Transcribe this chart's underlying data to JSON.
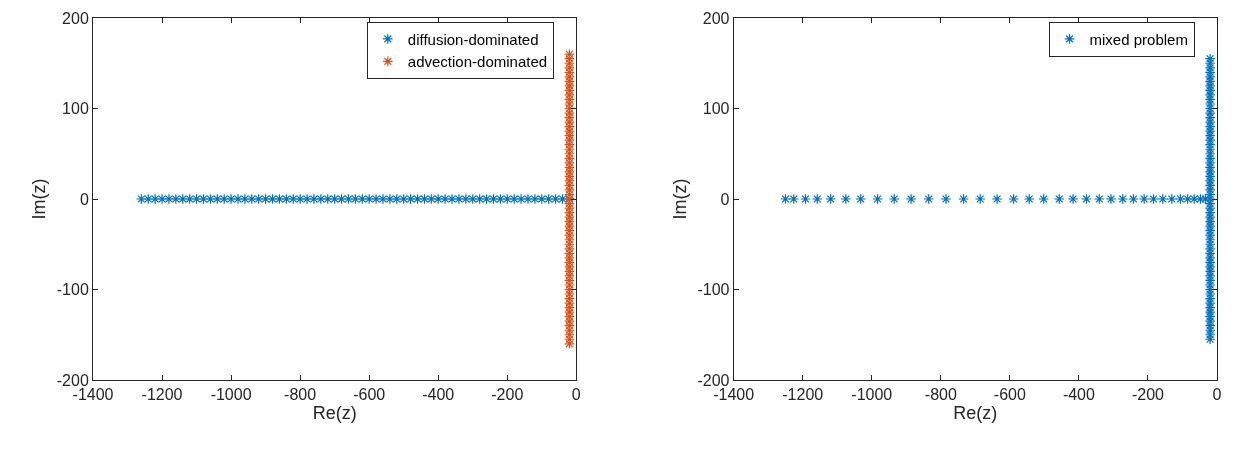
{
  "chart_data": [
    {
      "type": "scatter",
      "xlabel": "Re(z)",
      "ylabel": "Im(z)",
      "xlim": [
        -1400,
        0
      ],
      "xticks": [
        -1400,
        -1200,
        -1000,
        -800,
        -600,
        -400,
        -200,
        0
      ],
      "ylim": [
        -200,
        200
      ],
      "yticks": [
        -200,
        -100,
        0,
        100,
        200
      ],
      "legend": "top right",
      "marker": "cross",
      "series": [
        {
          "name": "diffusion-dominated",
          "color": "#0072bd",
          "x": [
            -1260,
            -1240,
            -1220,
            -1200,
            -1180,
            -1160,
            -1140,
            -1120,
            -1100,
            -1080,
            -1060,
            -1040,
            -1020,
            -1000,
            -980,
            -960,
            -940,
            -920,
            -900,
            -880,
            -860,
            -840,
            -820,
            -800,
            -780,
            -760,
            -740,
            -720,
            -700,
            -680,
            -660,
            -640,
            -620,
            -600,
            -580,
            -560,
            -540,
            -520,
            -500,
            -480,
            -460,
            -440,
            -420,
            -400,
            -380,
            -360,
            -340,
            -320,
            -300,
            -280,
            -260,
            -240,
            -220,
            -200,
            -180,
            -160,
            -140,
            -120,
            -100,
            -80,
            -60,
            -40,
            -20
          ],
          "values": [
            0,
            0,
            0,
            0,
            0,
            0,
            0,
            0,
            0,
            0,
            0,
            0,
            0,
            0,
            0,
            0,
            0,
            0,
            0,
            0,
            0,
            0,
            0,
            0,
            0,
            0,
            0,
            0,
            0,
            0,
            0,
            0,
            0,
            0,
            0,
            0,
            0,
            0,
            0,
            0,
            0,
            0,
            0,
            0,
            0,
            0,
            0,
            0,
            0,
            0,
            0,
            0,
            0,
            0,
            0,
            0,
            0,
            0,
            0,
            0,
            0,
            0,
            0
          ]
        },
        {
          "name": "advection-dominated",
          "color": "#d95319",
          "x": [
            -20,
            -20,
            -20,
            -20,
            -20,
            -20,
            -20,
            -20,
            -20,
            -20,
            -20,
            -20,
            -20,
            -20,
            -20,
            -20,
            -20,
            -20,
            -20,
            -20,
            -20,
            -20,
            -20,
            -20,
            -20,
            -20,
            -20,
            -20,
            -20,
            -20,
            -20,
            -20,
            -20,
            -20,
            -20,
            -20,
            -20,
            -20,
            -20,
            -20,
            -20,
            -20,
            -20,
            -20,
            -20,
            -20,
            -20,
            -20,
            -20,
            -20,
            -20,
            -20,
            -20,
            -20,
            -20,
            -20,
            -20,
            -20,
            -20,
            -20,
            -20,
            -20,
            -20,
            -20,
            -20
          ],
          "values": [
            -160,
            -155,
            -150,
            -145,
            -140,
            -135,
            -130,
            -125,
            -120,
            -115,
            -110,
            -105,
            -100,
            -95,
            -90,
            -85,
            -80,
            -75,
            -70,
            -65,
            -60,
            -55,
            -50,
            -45,
            -40,
            -35,
            -30,
            -25,
            -20,
            -15,
            -10,
            -5,
            0,
            5,
            10,
            15,
            20,
            25,
            30,
            35,
            40,
            45,
            50,
            55,
            60,
            65,
            70,
            75,
            80,
            85,
            90,
            95,
            100,
            105,
            110,
            115,
            120,
            125,
            130,
            135,
            140,
            145,
            150,
            155,
            160
          ]
        }
      ]
    },
    {
      "type": "scatter",
      "xlabel": "Re(z)",
      "ylabel": "Im(z)",
      "xlim": [
        -1400,
        0
      ],
      "xticks": [
        -1400,
        -1200,
        -1000,
        -800,
        -600,
        -400,
        -200,
        0
      ],
      "ylim": [
        -200,
        200
      ],
      "yticks": [
        -200,
        -100,
        0,
        100,
        200
      ],
      "legend": "top right",
      "marker": "cross",
      "series": [
        {
          "name": "mixed problem",
          "color": "#0072bd",
          "x": [
            -1250,
            -1226,
            -1192,
            -1158,
            -1119,
            -1075,
            -1032,
            -983,
            -935,
            -886,
            -835,
            -785,
            -734,
            -686,
            -637,
            -589,
            -544,
            -502,
            -457,
            -417,
            -378,
            -341,
            -307,
            -273,
            -242,
            -211,
            -184,
            -157,
            -131,
            -106,
            -85,
            -66,
            -48,
            -34,
            -20,
            -20,
            -20,
            -20,
            -20,
            -20,
            -20,
            -20,
            -20,
            -20,
            -20,
            -20,
            -20,
            -20,
            -20,
            -20,
            -20,
            -20,
            -20,
            -20,
            -20,
            -20,
            -20,
            -20,
            -20,
            -20,
            -20,
            -20,
            -20,
            -20,
            -20,
            -20,
            -20,
            -20,
            -20,
            -20,
            -20,
            -20,
            -20,
            -20,
            -20,
            -20,
            -20,
            -20,
            -20,
            -20,
            -20,
            -20,
            -20,
            -20,
            -20,
            -20,
            -20,
            -20,
            -20,
            -20,
            -20,
            -20,
            -20,
            -20,
            -20,
            -20,
            -20
          ],
          "values": [
            0,
            0,
            0,
            0,
            0,
            0,
            0,
            0,
            0,
            0,
            0,
            0,
            0,
            0,
            0,
            0,
            0,
            0,
            0,
            0,
            0,
            0,
            0,
            0,
            0,
            0,
            0,
            0,
            0,
            0,
            0,
            0,
            0,
            0,
            -155,
            -150,
            -145,
            -140,
            -135,
            -130,
            -125,
            -120,
            -115,
            -110,
            -105,
            -100,
            -95,
            -90,
            -85,
            -80,
            -75,
            -70,
            -65,
            -60,
            -55,
            -50,
            -45,
            -40,
            -35,
            -30,
            -25,
            -20,
            -15,
            -10,
            -5,
            0,
            5,
            10,
            15,
            20,
            25,
            30,
            35,
            40,
            45,
            50,
            55,
            60,
            65,
            70,
            75,
            80,
            85,
            90,
            95,
            100,
            105,
            110,
            115,
            120,
            125,
            130,
            135,
            140,
            145,
            150,
            155
          ]
        }
      ]
    }
  ]
}
